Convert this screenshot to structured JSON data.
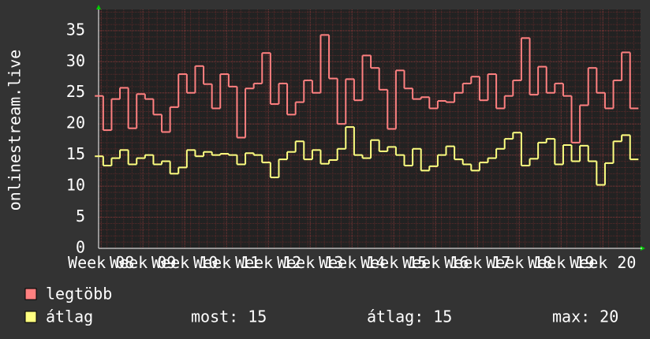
{
  "chart_data": {
    "type": "line",
    "ylabel": "onlinestream.live",
    "x": [
      7.95,
      8.15,
      8.35,
      8.55,
      8.75,
      8.95,
      9.15,
      9.35,
      9.55,
      9.75,
      9.95,
      10.15,
      10.35,
      10.55,
      10.75,
      10.95,
      11.15,
      11.35,
      11.55,
      11.75,
      11.95,
      12.15,
      12.35,
      12.55,
      12.75,
      12.95,
      13.15,
      13.35,
      13.55,
      13.75,
      13.95,
      14.15,
      14.35,
      14.55,
      14.75,
      14.95,
      15.15,
      15.35,
      15.55,
      15.75,
      15.95,
      16.15,
      16.35,
      16.55,
      16.75,
      16.95,
      17.15,
      17.35,
      17.55,
      17.75,
      17.95,
      18.15,
      18.35,
      18.55,
      18.75,
      18.95,
      19.15,
      19.35,
      19.55,
      19.75,
      19.95,
      20.15,
      20.35,
      20.55,
      20.75
    ],
    "series": [
      {
        "name": "legtöbb",
        "color": "#ff8080",
        "values": [
          24.5,
          19,
          24,
          25.8,
          19.3,
          24.8,
          24,
          21.5,
          18.7,
          22.7,
          28,
          25,
          29.3,
          26.4,
          22.5,
          28,
          26,
          17.8,
          25.7,
          26.5,
          31.4,
          23.2,
          26.5,
          21.5,
          23.5,
          27,
          25,
          34.3,
          27.3,
          20,
          27.2,
          23.8,
          31,
          29,
          25.5,
          19.2,
          28.6,
          25.7,
          24,
          24.3,
          22.5,
          23.7,
          23.5,
          25,
          26.5,
          27.6,
          23.8,
          28,
          22.5,
          24.5,
          27,
          33.8,
          24.7,
          29.2,
          25,
          26.5,
          24.5,
          17,
          23,
          29,
          25,
          22.5,
          27,
          31.5,
          22.5
        ]
      },
      {
        "name": "átlag",
        "color": "#ffff80",
        "values": [
          14.8,
          13.3,
          14.5,
          15.8,
          13.5,
          14.5,
          15,
          13.5,
          14,
          12,
          13,
          15.8,
          14.8,
          15.5,
          15,
          15.2,
          15,
          13.5,
          15.3,
          15,
          13.8,
          11.4,
          14.3,
          15.5,
          17.2,
          14.3,
          15.8,
          13.6,
          14.2,
          16,
          19.5,
          15,
          14.5,
          17.4,
          15.6,
          16.3,
          15,
          13.3,
          16,
          12.5,
          13.2,
          15,
          16.4,
          14.3,
          13.5,
          12.5,
          13.8,
          14.5,
          16,
          17.6,
          18.6,
          13.3,
          14.4,
          17,
          17.6,
          13.5,
          16.6,
          14,
          16.5,
          14,
          10.2,
          13.7,
          17.2,
          18.2,
          14.3
        ]
      }
    ],
    "xlim": [
      7.94,
      20.9
    ],
    "xticks": [
      {
        "value": 8,
        "label": "Week 08"
      },
      {
        "value": 9,
        "label": "Week 09"
      },
      {
        "value": 10,
        "label": "Week 10"
      },
      {
        "value": 11,
        "label": "Week 11"
      },
      {
        "value": 12,
        "label": "Week 12"
      },
      {
        "value": 13,
        "label": "Week 13"
      },
      {
        "value": 14,
        "label": "Week 14"
      },
      {
        "value": 15,
        "label": "Week 15"
      },
      {
        "value": 16,
        "label": "Week 16"
      },
      {
        "value": 17,
        "label": "Week 17"
      },
      {
        "value": 18,
        "label": "Week 18"
      },
      {
        "value": 19,
        "label": "Week 19"
      },
      {
        "value": 20,
        "label": "Week 20"
      }
    ],
    "ylim": [
      0,
      38.4
    ],
    "yticks": [
      0,
      5,
      10,
      15,
      20,
      25,
      30,
      35
    ],
    "grid": true,
    "stats": [
      {
        "label": "most:",
        "value": 15
      },
      {
        "label": "átlag:",
        "value": 15
      },
      {
        "label": "max:",
        "value": 20
      }
    ]
  }
}
